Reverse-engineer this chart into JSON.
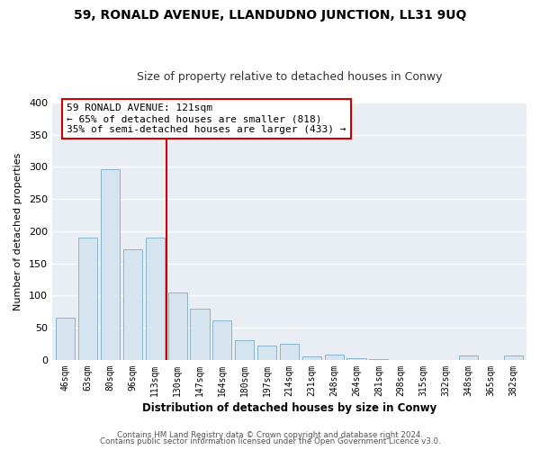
{
  "title_line1": "59, RONALD AVENUE, LLANDUDNO JUNCTION, LL31 9UQ",
  "title_line2": "Size of property relative to detached houses in Conwy",
  "xlabel": "Distribution of detached houses by size in Conwy",
  "ylabel": "Number of detached properties",
  "bar_labels": [
    "46sqm",
    "63sqm",
    "80sqm",
    "96sqm",
    "113sqm",
    "130sqm",
    "147sqm",
    "164sqm",
    "180sqm",
    "197sqm",
    "214sqm",
    "231sqm",
    "248sqm",
    "264sqm",
    "281sqm",
    "298sqm",
    "315sqm",
    "332sqm",
    "348sqm",
    "365sqm",
    "382sqm"
  ],
  "bar_heights": [
    65,
    190,
    297,
    172,
    190,
    105,
    80,
    62,
    31,
    22,
    25,
    6,
    8,
    3,
    1,
    0,
    0,
    0,
    7,
    0,
    7
  ],
  "bar_color": "#d6e4f0",
  "bar_edge_color": "#8ab4cc",
  "vline_x": 4.5,
  "vline_color": "#cc0000",
  "annotation_title": "59 RONALD AVENUE: 121sqm",
  "annotation_line2": "← 65% of detached houses are smaller (818)",
  "annotation_line3": "35% of semi-detached houses are larger (433) →",
  "annotation_box_color": "#ffffff",
  "annotation_box_edge": "#cc0000",
  "ylim": [
    0,
    400
  ],
  "yticks": [
    0,
    50,
    100,
    150,
    200,
    250,
    300,
    350,
    400
  ],
  "footer_line1": "Contains HM Land Registry data © Crown copyright and database right 2024.",
  "footer_line2": "Contains public sector information licensed under the Open Government Licence v3.0.",
  "bg_color": "#ffffff",
  "plot_bg_color": "#e8eef4",
  "grid_color": "#ffffff",
  "title_fontsize": 10,
  "subtitle_fontsize": 9,
  "ylabel_fontsize": 8,
  "xlabel_fontsize": 8.5
}
